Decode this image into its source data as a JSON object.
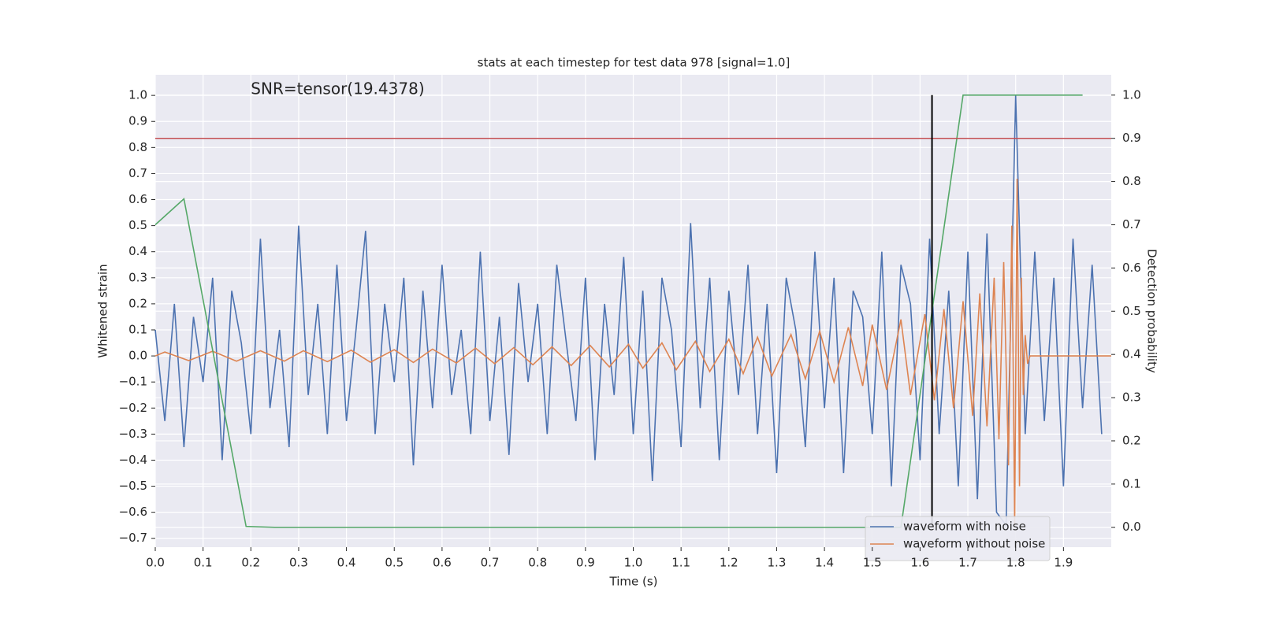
{
  "chart_data": {
    "type": "line",
    "title": "stats at each timestep for test data 978 [signal=1.0]",
    "annotation": "SNR=tensor(19.4378)",
    "annotation_x": 0.2,
    "annotation_y": 1.0,
    "xlabel": "Time (s)",
    "ylabel": "Whitened strain",
    "y2label": "Detection probability",
    "xlim": [
      0,
      2.0
    ],
    "ylim": [
      -0.734,
      1.079
    ],
    "y2lim": [
      -0.046,
      1.047
    ],
    "grid": true,
    "legend": "lower right",
    "xticks": [
      {
        "value": 0,
        "label": "0.0"
      },
      {
        "value": 0.1,
        "label": "0.1"
      },
      {
        "value": 0.2,
        "label": "0.2"
      },
      {
        "value": 0.3,
        "label": "0.3"
      },
      {
        "value": 0.4,
        "label": "0.4"
      },
      {
        "value": 0.5,
        "label": "0.5"
      },
      {
        "value": 0.6,
        "label": "0.6"
      },
      {
        "value": 0.7,
        "label": "0.7"
      },
      {
        "value": 0.8,
        "label": "0.8"
      },
      {
        "value": 0.9,
        "label": "0.9"
      },
      {
        "value": 1.0,
        "label": "1.0"
      },
      {
        "value": 1.1,
        "label": "1.1"
      },
      {
        "value": 1.2,
        "label": "1.2"
      },
      {
        "value": 1.3,
        "label": "1.3"
      },
      {
        "value": 1.4,
        "label": "1.4"
      },
      {
        "value": 1.5,
        "label": "1.5"
      },
      {
        "value": 1.6,
        "label": "1.6"
      },
      {
        "value": 1.7,
        "label": "1.7"
      },
      {
        "value": 1.8,
        "label": "1.8"
      },
      {
        "value": 1.9,
        "label": "1.9"
      }
    ],
    "yticks": [
      {
        "value": -0.7,
        "label": "−0.7"
      },
      {
        "value": -0.6,
        "label": "−0.6"
      },
      {
        "value": -0.5,
        "label": "−0.5"
      },
      {
        "value": -0.4,
        "label": "−0.4"
      },
      {
        "value": -0.3,
        "label": "−0.3"
      },
      {
        "value": -0.2,
        "label": "−0.2"
      },
      {
        "value": -0.1,
        "label": "−0.1"
      },
      {
        "value": 0,
        "label": "0.0"
      },
      {
        "value": 0.1,
        "label": "0.1"
      },
      {
        "value": 0.2,
        "label": "0.2"
      },
      {
        "value": 0.3,
        "label": "0.3"
      },
      {
        "value": 0.4,
        "label": "0.4"
      },
      {
        "value": 0.5,
        "label": "0.5"
      },
      {
        "value": 0.6,
        "label": "0.6"
      },
      {
        "value": 0.7,
        "label": "0.7"
      },
      {
        "value": 0.8,
        "label": "0.8"
      },
      {
        "value": 0.9,
        "label": "0.9"
      },
      {
        "value": 1.0,
        "label": "1.0"
      }
    ],
    "y2ticks": [
      {
        "value": 0,
        "label": "0.0"
      },
      {
        "value": 0.1,
        "label": "0.1"
      },
      {
        "value": 0.2,
        "label": "0.2"
      },
      {
        "value": 0.3,
        "label": "0.3"
      },
      {
        "value": 0.4,
        "label": "0.4"
      },
      {
        "value": 0.5,
        "label": "0.5"
      },
      {
        "value": 0.6,
        "label": "0.6"
      },
      {
        "value": 0.7,
        "label": "0.7"
      },
      {
        "value": 0.8,
        "label": "0.8"
      },
      {
        "value": 0.9,
        "label": "0.9"
      },
      {
        "value": 1.0,
        "label": "1.0"
      }
    ],
    "series": [
      {
        "name": "waveform with noise",
        "color": "#4c72b0",
        "x": [
          0,
          0.02,
          0.04,
          0.06,
          0.08,
          0.1,
          0.12,
          0.14,
          0.16,
          0.18,
          0.2,
          0.22,
          0.24,
          0.26,
          0.28,
          0.3,
          0.32,
          0.34,
          0.36,
          0.38,
          0.4,
          0.42,
          0.44,
          0.46,
          0.48,
          0.5,
          0.52,
          0.54,
          0.56,
          0.58,
          0.6,
          0.62,
          0.64,
          0.66,
          0.68,
          0.7,
          0.72,
          0.74,
          0.76,
          0.78,
          0.8,
          0.82,
          0.84,
          0.86,
          0.88,
          0.9,
          0.92,
          0.94,
          0.96,
          0.98,
          1.0,
          1.02,
          1.04,
          1.06,
          1.08,
          1.1,
          1.12,
          1.14,
          1.16,
          1.18,
          1.2,
          1.22,
          1.24,
          1.26,
          1.28,
          1.3,
          1.32,
          1.34,
          1.36,
          1.38,
          1.4,
          1.42,
          1.44,
          1.46,
          1.48,
          1.5,
          1.52,
          1.54,
          1.56,
          1.58,
          1.6,
          1.62,
          1.64,
          1.66,
          1.68,
          1.7,
          1.72,
          1.74,
          1.76,
          1.78,
          1.8,
          1.82,
          1.84,
          1.86,
          1.88,
          1.9,
          1.92,
          1.94,
          1.96,
          1.98
        ],
        "values": [
          0.1,
          -0.25,
          0.2,
          -0.35,
          0.15,
          -0.1,
          0.3,
          -0.4,
          0.25,
          0.05,
          -0.3,
          0.45,
          -0.2,
          0.1,
          -0.35,
          0.5,
          -0.15,
          0.2,
          -0.3,
          0.35,
          -0.25,
          0.1,
          0.48,
          -0.3,
          0.2,
          -0.1,
          0.3,
          -0.42,
          0.25,
          -0.2,
          0.35,
          -0.15,
          0.1,
          -0.3,
          0.4,
          -0.25,
          0.15,
          -0.38,
          0.28,
          -0.1,
          0.2,
          -0.3,
          0.35,
          0.05,
          -0.25,
          0.3,
          -0.4,
          0.2,
          -0.15,
          0.38,
          -0.3,
          0.25,
          -0.48,
          0.3,
          0.1,
          -0.35,
          0.51,
          -0.2,
          0.3,
          -0.4,
          0.25,
          -0.15,
          0.35,
          -0.3,
          0.2,
          -0.45,
          0.3,
          0.1,
          -0.35,
          0.4,
          -0.2,
          0.3,
          -0.45,
          0.25,
          0.15,
          -0.3,
          0.4,
          -0.5,
          0.35,
          0.2,
          -0.4,
          0.45,
          -0.3,
          0.25,
          -0.5,
          0.4,
          -0.55,
          0.47,
          -0.6,
          -0.65,
          1.0,
          -0.3,
          0.4,
          -0.25,
          0.3,
          -0.5,
          0.45,
          -0.2,
          0.35,
          -0.3
        ]
      },
      {
        "name": "waveform without noise",
        "color": "#dd8452",
        "x": [
          0,
          0.02,
          0.07,
          0.12,
          0.17,
          0.22,
          0.27,
          0.31,
          0.36,
          0.41,
          0.45,
          0.5,
          0.54,
          0.58,
          0.63,
          0.67,
          0.71,
          0.75,
          0.79,
          0.83,
          0.87,
          0.91,
          0.95,
          0.99,
          1.02,
          1.06,
          1.09,
          1.13,
          1.16,
          1.2,
          1.23,
          1.26,
          1.29,
          1.33,
          1.36,
          1.39,
          1.42,
          1.45,
          1.48,
          1.5,
          1.53,
          1.56,
          1.58,
          1.61,
          1.63,
          1.65,
          1.67,
          1.69,
          1.71,
          1.725,
          1.74,
          1.755,
          1.765,
          1.775,
          1.785,
          1.792,
          1.798,
          1.803,
          1.808,
          1.812,
          1.816,
          1.82,
          1.825,
          1.83,
          2.0
        ],
        "values": [
          0,
          0.015,
          -0.018,
          0.018,
          -0.02,
          0.02,
          -0.02,
          0.02,
          -0.022,
          0.022,
          -0.024,
          0.024,
          -0.025,
          0.026,
          -0.027,
          0.03,
          -0.03,
          0.032,
          -0.034,
          0.035,
          -0.037,
          0.04,
          -0.042,
          0.045,
          -0.047,
          0.05,
          -0.053,
          0.056,
          -0.06,
          0.064,
          -0.068,
          0.072,
          -0.077,
          0.082,
          -0.088,
          0.095,
          -0.1,
          0.11,
          -0.115,
          0.12,
          -0.13,
          0.14,
          -0.15,
          0.16,
          -0.17,
          0.18,
          -0.2,
          0.21,
          -0.23,
          0.24,
          -0.27,
          0.3,
          -0.32,
          0.36,
          -0.42,
          0.5,
          -0.65,
          0.68,
          -0.5,
          0.3,
          -0.15,
          0.08,
          -0.03,
          0,
          0
        ]
      },
      {
        "color": "#55a868",
        "axis": "y2",
        "x": [
          0,
          0.06,
          0.19,
          0.25,
          1.56,
          1.69,
          1.94
        ],
        "values": [
          0.7,
          0.76,
          0.002,
          0,
          0,
          1.0,
          1.0
        ]
      }
    ],
    "hlines": [
      {
        "y": 0.9,
        "axis": "y2",
        "color": "#c44e52"
      }
    ],
    "vlines": [
      {
        "x": 1.625,
        "ymin": 0,
        "ymax": 1.0,
        "axis": "y2",
        "color": "#000000"
      }
    ]
  }
}
